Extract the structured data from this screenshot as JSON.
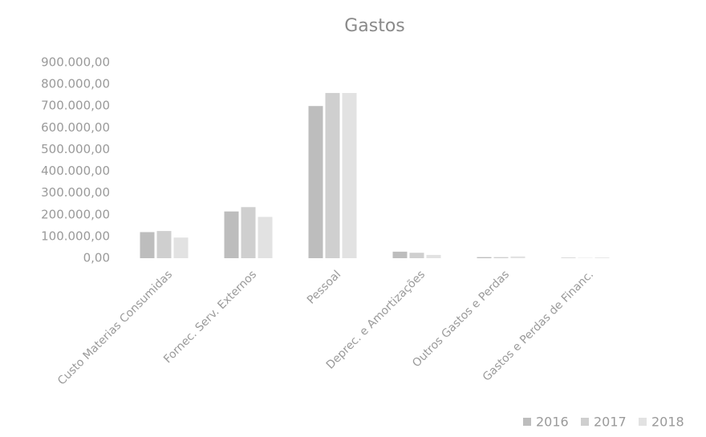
{
  "chart_data": {
    "type": "bar",
    "title": "Gastos",
    "categories": [
      "Custo Materias Consumidas",
      "Fornec. Serv. Externos",
      "Pessoal",
      "Deprec. e Amortizações",
      "Outros Gastos e Perdas",
      "Gastos e Perdas de Financ."
    ],
    "series": [
      {
        "name": "2016",
        "color": "#bdbdbd",
        "values": [
          120000,
          215000,
          700000,
          30000,
          5000,
          2000
        ]
      },
      {
        "name": "2017",
        "color": "#cfcfcf",
        "values": [
          125000,
          235000,
          760000,
          25000,
          5000,
          1000
        ]
      },
      {
        "name": "2018",
        "color": "#e2e2e2",
        "values": [
          95000,
          190000,
          760000,
          15000,
          8000,
          3000
        ]
      }
    ],
    "ylim": [
      0,
      900000
    ],
    "yticks": [
      {
        "value": 0,
        "label": "0,00"
      },
      {
        "value": 100000,
        "label": "100.000,00"
      },
      {
        "value": 200000,
        "label": "200.000,00"
      },
      {
        "value": 300000,
        "label": "300.000,00"
      },
      {
        "value": 400000,
        "label": "400.000,00"
      },
      {
        "value": 500000,
        "label": "500.000,00"
      },
      {
        "value": 600000,
        "label": "600.000,00"
      },
      {
        "value": 700000,
        "label": "700.000,00"
      },
      {
        "value": 800000,
        "label": "800.000,00"
      },
      {
        "value": 900000,
        "label": "900.000,00"
      }
    ],
    "grid": false,
    "legend": "bottom-right"
  }
}
